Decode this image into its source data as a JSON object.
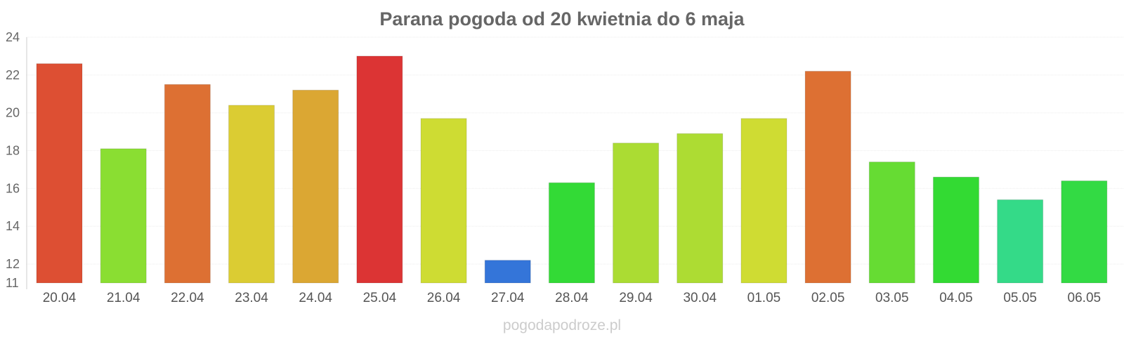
{
  "chart_data": {
    "type": "bar",
    "title": "Parana pogoda od 20 kwietnia do 6 maja",
    "categories": [
      "20.04",
      "21.04",
      "22.04",
      "23.04",
      "24.04",
      "25.04",
      "26.04",
      "27.04",
      "28.04",
      "29.04",
      "30.04",
      "01.05",
      "02.05",
      "03.05",
      "04.05",
      "05.05",
      "06.05"
    ],
    "values": [
      22.6,
      18.1,
      21.5,
      20.4,
      21.2,
      23.0,
      19.7,
      12.2,
      16.3,
      18.4,
      18.9,
      19.7,
      22.2,
      17.4,
      16.6,
      15.4,
      16.4
    ],
    "colors": [
      "#dd4f33",
      "#8ade32",
      "#dd7033",
      "#dbcc33",
      "#dba733",
      "#dc3434",
      "#cedc33",
      "#3475d9",
      "#33da36",
      "#abdc33",
      "#addc33",
      "#cfdc33",
      "#dd7033",
      "#66dc33",
      "#33da33",
      "#34da88",
      "#33da44"
    ],
    "ylim": [
      11,
      24
    ],
    "yticks": [
      11,
      12,
      14,
      16,
      18,
      20,
      22,
      24
    ],
    "xlabel": "",
    "ylabel": "",
    "grid": true,
    "legend": "none"
  },
  "watermark": "pogodapodroze.pl"
}
